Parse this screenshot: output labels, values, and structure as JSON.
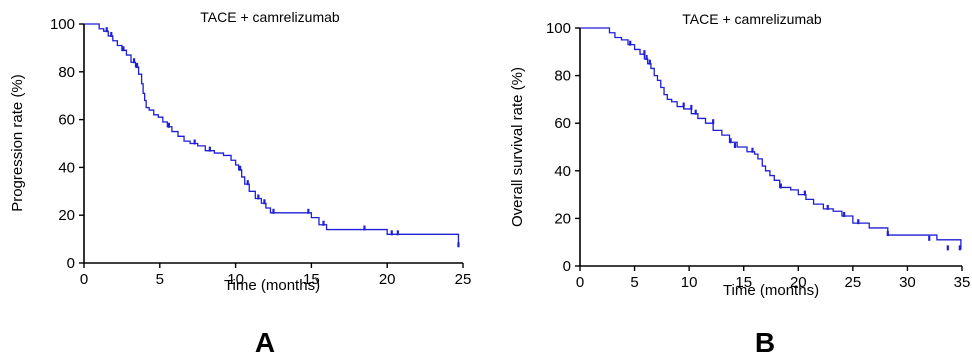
{
  "chart_data": [
    {
      "type": "line",
      "panel_label": "A",
      "title": "TACE + camrelizumab",
      "xlabel": "Time (months)",
      "ylabel": "Progression rate (%)",
      "xlim": [
        0,
        25
      ],
      "ylim": [
        0,
        100
      ],
      "xticks": [
        0,
        5,
        10,
        15,
        20,
        25
      ],
      "yticks": [
        0,
        20,
        40,
        60,
        80,
        100
      ],
      "grid": false,
      "line_color": "#1f1fd6",
      "series": [
        {
          "x": [
            0,
            1.0,
            1.3,
            1.6,
            1.9,
            2.2,
            2.5,
            2.8,
            3.1,
            3.4,
            3.6,
            3.8,
            3.9,
            4.0,
            4.1,
            4.3,
            4.6,
            4.9,
            5.2,
            5.5,
            5.8,
            6.2,
            6.6,
            7.0,
            7.5,
            8.0,
            8.6,
            9.2,
            9.7,
            10.0,
            10.2,
            10.4,
            10.6,
            10.9,
            11.3,
            11.7,
            12.0,
            12.3,
            15.0,
            15.5,
            16.0,
            20.0,
            24.7
          ],
          "y": [
            100,
            98,
            97,
            95,
            93,
            91,
            89,
            87,
            84,
            82,
            79,
            75,
            71,
            68,
            65,
            64,
            62,
            61,
            59,
            57,
            55,
            53,
            51,
            50,
            49,
            47,
            46,
            45,
            43,
            41,
            39,
            36,
            33,
            30,
            27,
            25,
            23,
            21,
            19,
            16,
            14,
            12,
            7
          ],
          "censored": [
            {
              "x": 1.5,
              "y": 97
            },
            {
              "x": 1.8,
              "y": 95
            },
            {
              "x": 2.6,
              "y": 89
            },
            {
              "x": 3.3,
              "y": 84
            },
            {
              "x": 3.5,
              "y": 82
            },
            {
              "x": 5.6,
              "y": 57
            },
            {
              "x": 7.3,
              "y": 50
            },
            {
              "x": 8.3,
              "y": 47
            },
            {
              "x": 10.3,
              "y": 39
            },
            {
              "x": 10.8,
              "y": 33
            },
            {
              "x": 11.5,
              "y": 27
            },
            {
              "x": 11.9,
              "y": 25
            },
            {
              "x": 12.5,
              "y": 21
            },
            {
              "x": 14.8,
              "y": 21
            },
            {
              "x": 15.8,
              "y": 16
            },
            {
              "x": 18.5,
              "y": 14
            },
            {
              "x": 20.3,
              "y": 12
            },
            {
              "x": 20.7,
              "y": 12
            },
            {
              "x": 24.7,
              "y": 7
            }
          ]
        }
      ]
    },
    {
      "type": "line",
      "panel_label": "B",
      "title": "TACE + camrelizumab",
      "xlabel": "Time (months)",
      "ylabel": "Overall survival rate (%)",
      "xlim": [
        0,
        35
      ],
      "ylim": [
        0,
        100
      ],
      "xticks": [
        0,
        5,
        10,
        15,
        20,
        25,
        30,
        35
      ],
      "yticks": [
        0,
        20,
        40,
        60,
        80,
        100
      ],
      "grid": false,
      "line_color": "#1f1fd6",
      "series": [
        {
          "x": [
            0,
            2.7,
            3.2,
            3.8,
            4.4,
            5.0,
            5.5,
            5.9,
            6.2,
            6.5,
            6.8,
            7.1,
            7.4,
            7.7,
            8.0,
            8.4,
            8.9,
            9.5,
            10.2,
            10.8,
            11.5,
            12.2,
            13.0,
            13.7,
            14.4,
            15.3,
            16.0,
            16.3,
            16.7,
            17.0,
            17.4,
            17.8,
            18.3,
            19.3,
            20.0,
            20.7,
            21.4,
            22.3,
            23.2,
            24.0,
            25.0,
            26.5,
            28.2,
            32.7,
            34.9
          ],
          "y": [
            100,
            98,
            96,
            95,
            93,
            91,
            89,
            87,
            85,
            83,
            80,
            78,
            75,
            72,
            70,
            69,
            67,
            66,
            64,
            62,
            60,
            57,
            55,
            52,
            50,
            48,
            47,
            45,
            42,
            40,
            38,
            36,
            33,
            32,
            30,
            28,
            26,
            24,
            23,
            21,
            18,
            16,
            13,
            11,
            7
          ],
          "censored": [
            {
              "x": 4.6,
              "y": 93
            },
            {
              "x": 5.9,
              "y": 89
            },
            {
              "x": 6.1,
              "y": 87
            },
            {
              "x": 6.4,
              "y": 85
            },
            {
              "x": 9.5,
              "y": 67
            },
            {
              "x": 10.2,
              "y": 66
            },
            {
              "x": 10.6,
              "y": 64
            },
            {
              "x": 12.2,
              "y": 60
            },
            {
              "x": 13.8,
              "y": 52
            },
            {
              "x": 14.2,
              "y": 50
            },
            {
              "x": 15.8,
              "y": 48
            },
            {
              "x": 18.4,
              "y": 33
            },
            {
              "x": 20.6,
              "y": 30
            },
            {
              "x": 22.7,
              "y": 24
            },
            {
              "x": 24.2,
              "y": 21
            },
            {
              "x": 25.5,
              "y": 18
            },
            {
              "x": 28.2,
              "y": 13
            },
            {
              "x": 32.0,
              "y": 11
            },
            {
              "x": 33.7,
              "y": 7
            },
            {
              "x": 34.8,
              "y": 7
            }
          ]
        }
      ]
    }
  ]
}
